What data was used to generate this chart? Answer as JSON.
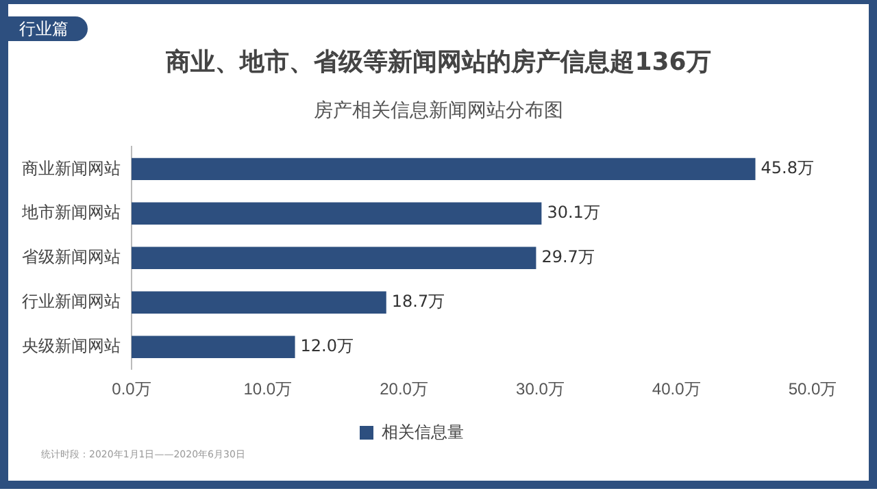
{
  "chart_data": {
    "type": "bar",
    "orientation": "horizontal",
    "title": "商业、地市、省级等新闻网站的房产信息超136万",
    "subtitle": "房产相关信息新闻网站分布图",
    "categories": [
      "商业新闻网站",
      "地市新闻网站",
      "省级新闻网站",
      "行业新闻网站",
      "央级新闻网站"
    ],
    "series": [
      {
        "name": "相关信息量",
        "color": "#2d4f7f",
        "values": [
          45.8,
          30.1,
          29.7,
          18.7,
          12.0
        ],
        "value_labels": [
          "45.8万",
          "30.1万",
          "29.7万",
          "18.7万",
          "12.0万"
        ]
      }
    ],
    "xlim": [
      0,
      50
    ],
    "xticks": [
      {
        "value": 0,
        "label": "0.0万"
      },
      {
        "value": 10,
        "label": "10.0万"
      },
      {
        "value": 20,
        "label": "20.0万"
      },
      {
        "value": 30,
        "label": "30.0万"
      },
      {
        "value": 40,
        "label": "40.0万"
      },
      {
        "value": 50,
        "label": "50.0万"
      }
    ],
    "grid": false,
    "legend": "bottom",
    "annotations": [
      "行业篇",
      "统计时段：2020年1月1日——2020年6月30日"
    ]
  }
}
